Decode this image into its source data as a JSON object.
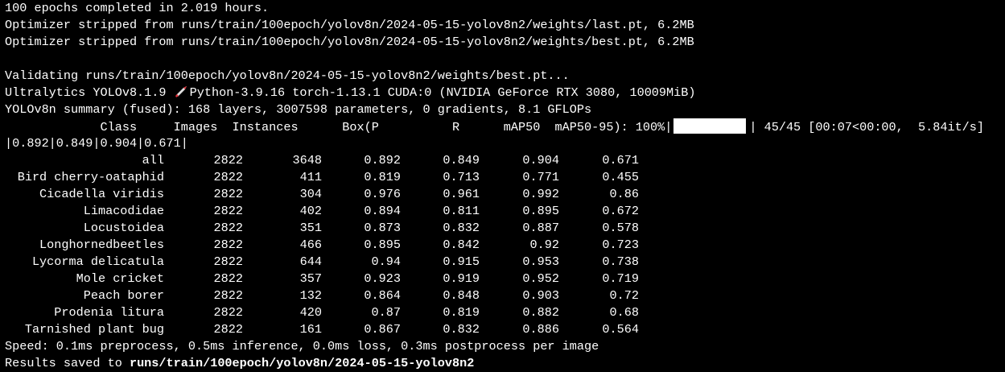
{
  "log": {
    "line1": "100 epochs completed in 2.019 hours.",
    "line2": "Optimizer stripped from runs/train/100epoch/yolov8n/2024-05-15-yolov8n2/weights/last.pt, 6.2MB",
    "line3": "Optimizer stripped from runs/train/100epoch/yolov8n/2024-05-15-yolov8n2/weights/best.pt, 6.2MB",
    "validating": "Validating runs/train/100epoch/yolov8n/2024-05-15-yolov8n2/weights/best.pt...",
    "version_prefix": "Ultralytics YOLOv8.1.9 ",
    "version_suffix": "Python-3.9.16 torch-1.13.1 CUDA:0 (NVIDIA GeForce RTX 3080, 10009MiB)",
    "summary": "YOLOv8n summary (fused): 168 layers, 3007598 parameters, 0 gradients, 8.1 GFLOPs",
    "header_cols": "             Class     Images  Instances      Box(P          R      mAP50  mAP50-95): 100%|",
    "progress_percent": 100,
    "progress_tail": "| 45/45 [00:07<00:00,  5.84it/s]",
    "wrap_line": "|0.892|0.849|0.904|0.671|",
    "speed": "Speed: 0.1ms preprocess, 0.5ms inference, 0.0ms loss, 0.3ms postprocess per image",
    "results_prefix": "Results saved to ",
    "results_path": "runs/train/100epoch/yolov8n/2024-05-15-yolov8n2"
  },
  "table": {
    "rows": [
      [
        "all",
        "2822",
        "3648",
        "0.892",
        "0.849",
        "0.904",
        "0.671"
      ],
      [
        "Bird cherry-oataphid",
        "2822",
        "411",
        "0.819",
        "0.713",
        "0.771",
        "0.455"
      ],
      [
        "Cicadella viridis",
        "2822",
        "304",
        "0.976",
        "0.961",
        "0.992",
        "0.86"
      ],
      [
        "Limacodidae",
        "2822",
        "402",
        "0.894",
        "0.811",
        "0.895",
        "0.672"
      ],
      [
        "Locustoidea",
        "2822",
        "351",
        "0.873",
        "0.832",
        "0.887",
        "0.578"
      ],
      [
        "Longhornedbeetles",
        "2822",
        "466",
        "0.895",
        "0.842",
        "0.92",
        "0.723"
      ],
      [
        "Lycorma delicatula",
        "2822",
        "644",
        "0.94",
        "0.915",
        "0.953",
        "0.738"
      ],
      [
        "Mole cricket",
        "2822",
        "357",
        "0.923",
        "0.919",
        "0.952",
        "0.719"
      ],
      [
        "Peach borer",
        "2822",
        "132",
        "0.864",
        "0.848",
        "0.903",
        "0.72"
      ],
      [
        "Prodenia litura",
        "2822",
        "420",
        "0.87",
        "0.819",
        "0.882",
        "0.68"
      ],
      [
        "Tarnished plant bug",
        "2822",
        "161",
        "0.867",
        "0.832",
        "0.886",
        "0.564"
      ]
    ]
  },
  "icons": {
    "rocket": "rocket-icon"
  },
  "colors": {
    "background": "#000000",
    "text": "#ffffff",
    "rocket_body": "#e0e0e0",
    "rocket_fire": "#e0303a"
  }
}
